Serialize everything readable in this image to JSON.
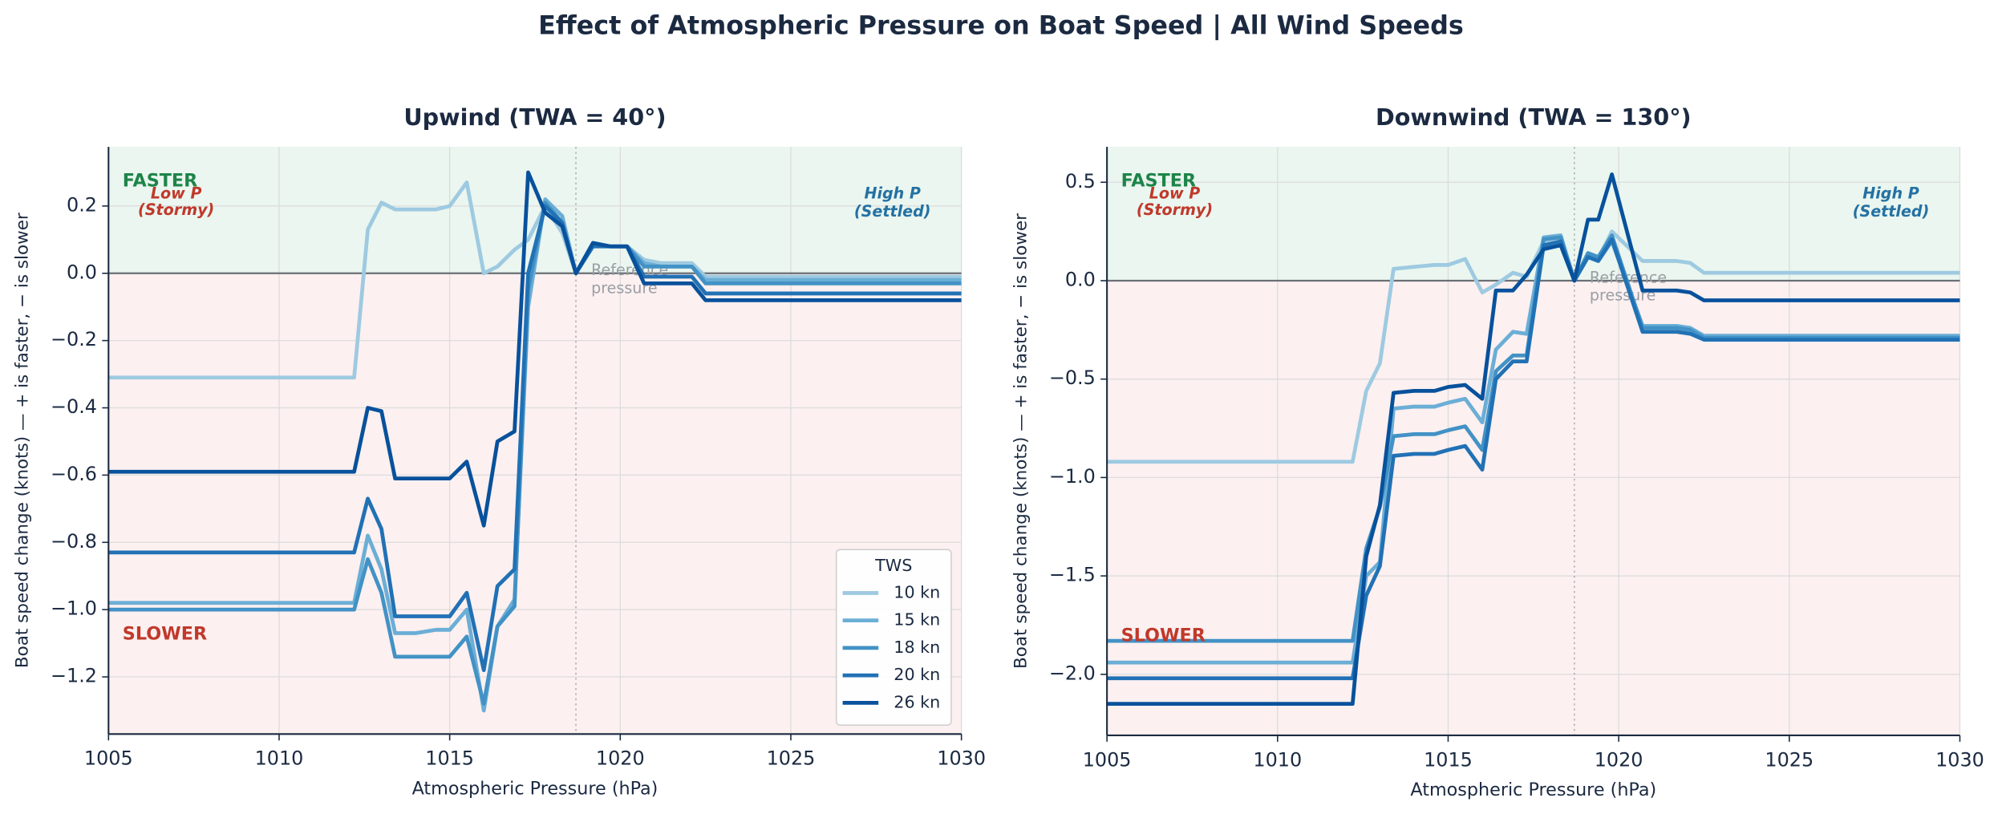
{
  "title": "Effect of Atmospheric Pressure on Boat Speed  |  All Wind Speeds",
  "chart_data": [
    {
      "type": "line",
      "title": "Upwind  (TWA = 40°)",
      "xlabel": "Atmospheric Pressure (hPa)",
      "ylabel": "Boat speed change (knots)  —  + is faster, − is slower",
      "x": [
        1005,
        1012.2,
        1012.6,
        1013.0,
        1013.4,
        1014.0,
        1014.6,
        1015.0,
        1015.5,
        1016.0,
        1016.4,
        1016.9,
        1017.3,
        1017.8,
        1018.3,
        1018.7,
        1019.2,
        1019.7,
        1020.2,
        1020.7,
        1021.2,
        1021.7,
        1022.1,
        1022.5,
        1030
      ],
      "series": [
        {
          "name": "10 kn",
          "color": "#9ecae1",
          "values": [
            -0.31,
            -0.31,
            0.13,
            0.21,
            0.19,
            0.19,
            0.19,
            0.2,
            0.27,
            0.0,
            0.02,
            0.07,
            0.1,
            0.2,
            0.12,
            0.0,
            0.09,
            0.08,
            0.08,
            0.04,
            0.03,
            0.03,
            0.03,
            -0.01,
            -0.01
          ]
        },
        {
          "name": "15 kn",
          "color": "#6baed6",
          "values": [
            -0.98,
            -0.98,
            -0.78,
            -0.88,
            -1.07,
            -1.07,
            -1.06,
            -1.06,
            -1.0,
            -1.3,
            -1.05,
            -0.97,
            -0.1,
            0.22,
            0.17,
            0.0,
            0.09,
            0.08,
            0.08,
            0.03,
            0.02,
            0.02,
            0.02,
            -0.02,
            -0.02
          ]
        },
        {
          "name": "18 kn",
          "color": "#4292c6",
          "values": [
            -1.0,
            -1.0,
            -0.85,
            -0.95,
            -1.14,
            -1.14,
            -1.14,
            -1.14,
            -1.08,
            -1.28,
            -1.05,
            -0.99,
            -0.05,
            0.21,
            0.15,
            0.0,
            0.09,
            0.08,
            0.08,
            0.02,
            0.02,
            0.02,
            0.02,
            -0.03,
            -0.03
          ]
        },
        {
          "name": "20 kn",
          "color": "#2171b5",
          "values": [
            -0.83,
            -0.83,
            -0.67,
            -0.76,
            -1.02,
            -1.02,
            -1.02,
            -1.02,
            -0.95,
            -1.18,
            -0.93,
            -0.88,
            0.0,
            0.2,
            0.15,
            0.0,
            0.08,
            0.08,
            0.08,
            -0.01,
            -0.01,
            -0.01,
            -0.01,
            -0.06,
            -0.06
          ]
        },
        {
          "name": "26 kn",
          "color": "#08519c",
          "values": [
            -0.59,
            -0.59,
            -0.4,
            -0.41,
            -0.61,
            -0.61,
            -0.61,
            -0.61,
            -0.56,
            -0.75,
            -0.5,
            -0.47,
            0.3,
            0.18,
            0.14,
            0.0,
            0.09,
            0.08,
            0.08,
            -0.03,
            -0.03,
            -0.03,
            -0.03,
            -0.08,
            -0.08
          ]
        }
      ],
      "xlim": [
        1005,
        1030
      ],
      "xticks": [
        1005,
        1010,
        1015,
        1020,
        1025,
        1030
      ],
      "ylim": [
        -1.37,
        0.376
      ],
      "yticks": [
        {
          "value": -1.2,
          "label": "−1.2"
        },
        {
          "value": -1.0,
          "label": "−1.0"
        },
        {
          "value": -0.8,
          "label": "−0.8"
        },
        {
          "value": -0.6,
          "label": "−0.6"
        },
        {
          "value": -0.4,
          "label": "−0.4"
        },
        {
          "value": -0.2,
          "label": "−0.2"
        },
        {
          "value": 0,
          "label": "0.0"
        },
        0.2
      ],
      "grid": true,
      "reference_pressure": 1018.7,
      "faster_label": "FASTER",
      "slower_label": "SLOWER",
      "low_label": [
        "Low P",
        "(Stormy)"
      ],
      "high_label": [
        "High P",
        "(Settled)"
      ],
      "reference_label": [
        "Reference",
        "pressure"
      ],
      "legend": "lower right",
      "legend_title": "TWS"
    },
    {
      "type": "line",
      "title": "Downwind (TWA = 130°)",
      "xlabel": "Atmospheric Pressure (hPa)",
      "ylabel": "Boat speed change (knots)  —  + is faster, − is slower",
      "x": [
        1005,
        1012.2,
        1012.6,
        1013.0,
        1013.4,
        1014.0,
        1014.6,
        1015.0,
        1015.5,
        1016.0,
        1016.4,
        1016.9,
        1017.3,
        1017.8,
        1018.3,
        1018.7,
        1019.1,
        1019.4,
        1019.8,
        1020.7,
        1021.2,
        1021.7,
        1022.1,
        1022.5,
        1030
      ],
      "series": [
        {
          "name": "10 kn",
          "color": "#9ecae1",
          "values": [
            -0.92,
            -0.92,
            -0.56,
            -0.42,
            0.06,
            0.07,
            0.08,
            0.08,
            0.11,
            -0.06,
            -0.02,
            0.04,
            0.02,
            0.2,
            0.22,
            0.0,
            0.13,
            0.11,
            0.25,
            0.1,
            0.1,
            0.1,
            0.09,
            0.04,
            0.04
          ]
        },
        {
          "name": "15 kn",
          "color": "#6baed6",
          "values": [
            -1.94,
            -1.94,
            -1.5,
            -1.43,
            -0.65,
            -0.64,
            -0.64,
            -0.62,
            -0.6,
            -0.72,
            -0.35,
            -0.26,
            -0.27,
            0.22,
            0.23,
            0.0,
            0.12,
            0.1,
            0.2,
            -0.23,
            -0.23,
            -0.23,
            -0.24,
            -0.28,
            -0.28
          ]
        },
        {
          "name": "18 kn",
          "color": "#4292c6",
          "values": [
            -1.83,
            -1.83,
            -1.36,
            -1.15,
            -0.79,
            -0.78,
            -0.78,
            -0.76,
            -0.74,
            -0.86,
            -0.46,
            -0.38,
            -0.38,
            0.21,
            0.22,
            0.0,
            0.14,
            0.12,
            0.23,
            -0.24,
            -0.24,
            -0.24,
            -0.25,
            -0.29,
            -0.29
          ]
        },
        {
          "name": "20 kn",
          "color": "#2171b5",
          "values": [
            -2.02,
            -2.02,
            -1.6,
            -1.45,
            -0.89,
            -0.88,
            -0.88,
            -0.86,
            -0.84,
            -0.96,
            -0.5,
            -0.41,
            -0.41,
            0.18,
            0.2,
            0.0,
            0.12,
            0.1,
            0.21,
            -0.26,
            -0.26,
            -0.26,
            -0.27,
            -0.3,
            -0.3
          ]
        },
        {
          "name": "26 kn",
          "color": "#08519c",
          "values": [
            -2.15,
            -2.15,
            -1.4,
            -1.14,
            -0.57,
            -0.56,
            -0.56,
            -0.54,
            -0.53,
            -0.6,
            -0.05,
            -0.05,
            0.03,
            0.16,
            0.18,
            0.0,
            0.31,
            0.31,
            0.54,
            -0.05,
            -0.05,
            -0.05,
            -0.06,
            -0.1,
            -0.1
          ]
        }
      ],
      "xlim": [
        1005,
        1030
      ],
      "xticks": [
        1005,
        1010,
        1015,
        1020,
        1025,
        1030
      ],
      "ylim": [
        -2.31,
        0.68
      ],
      "yticks": [
        {
          "value": -2.0,
          "label": "−2.0"
        },
        {
          "value": -1.5,
          "label": "−1.5"
        },
        {
          "value": -1.0,
          "label": "−1.0"
        },
        {
          "value": -0.5,
          "label": "−0.5"
        },
        {
          "value": 0,
          "label": "0.0"
        },
        0.5
      ],
      "grid": true,
      "reference_pressure": 1018.7,
      "faster_label": "FASTER",
      "slower_label": "SLOWER",
      "low_label": [
        "Low P",
        "(Stormy)"
      ],
      "high_label": [
        "High P",
        "(Settled)"
      ],
      "reference_label": [
        "Reference",
        "pressure"
      ],
      "legend": "none"
    }
  ]
}
